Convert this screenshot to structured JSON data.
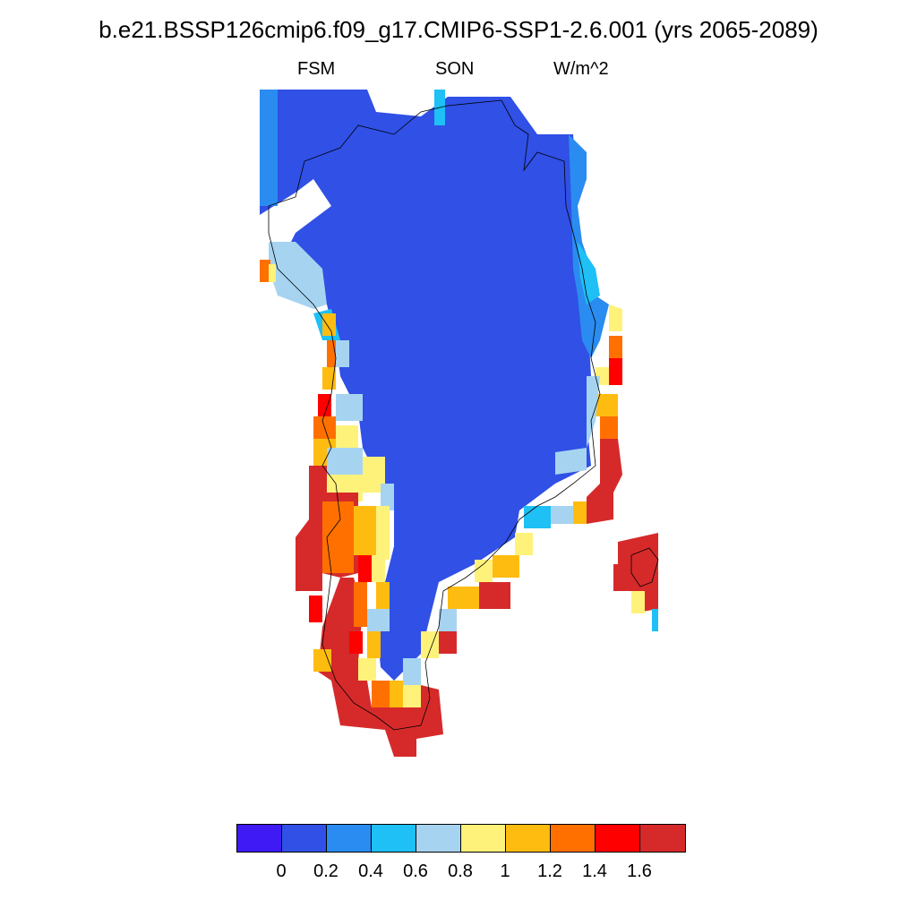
{
  "title": "b.e21.BSSP126cmip6.f09_g17.CMIP6-SSP1-2.6.001 (yrs 2065-2089)",
  "left_label": "FSM",
  "center_label": "SON",
  "right_label": "W/m^2",
  "colorbar": {
    "colors": [
      "#3f1af5",
      "#3050e6",
      "#2a8cf0",
      "#1ec0f5",
      "#a6d4f0",
      "#fff27a",
      "#ffbc10",
      "#ff7000",
      "#ff0000",
      "#d62a2a"
    ],
    "labels": [
      "0",
      "0.2",
      "0.4",
      "0.6",
      "0.8",
      "1",
      "1.2",
      "1.4",
      "1.6"
    ]
  },
  "colors": {
    "interior": "#3050e6",
    "coast_border": "#000000"
  }
}
